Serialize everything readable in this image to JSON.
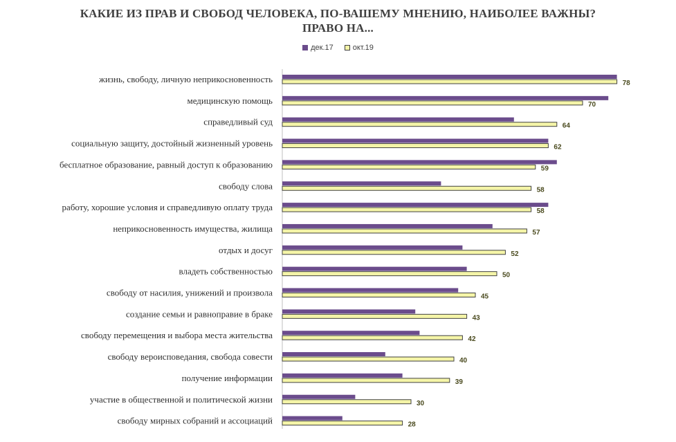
{
  "chart_data": {
    "type": "bar",
    "orientation": "horizontal",
    "title": "КАКИЕ ИЗ ПРАВ И СВОБОД ЧЕЛОВЕКА, ПО-ВАШЕМУ МНЕНИЮ, НАИБОЛЕЕ ВАЖНЫ?",
    "subtitle": "ПРАВО НА...",
    "xlabel": "",
    "ylabel": "",
    "xlim": [
      0,
      82
    ],
    "grid": false,
    "legend_position": "top",
    "categories": [
      "жизнь, свободу, личную неприкосновенность",
      "медицинскую помощь",
      "справедливый суд",
      "социальную защиту, достойный жизненный уровень",
      "бесплатное образование, равный доступ к образованию",
      "свободу слова",
      "работу, хорошие условия и справедливую оплату труда",
      "неприкосновенность имущества, жилища",
      "отдых и досуг",
      "владеть собственностью",
      "свободу от насилия, унижений и произвола",
      "создание семьи и равноправие в браке",
      "свободу перемещения и выбора места жительства",
      "свободу вероисповедания, свобода совести",
      "получение информации",
      "участие в общественной и политической жизни",
      "свободу мирных собраний и ассоциаций"
    ],
    "series": [
      {
        "name": "дек.17",
        "color": "#6b4c8c",
        "values": [
          78,
          76,
          54,
          62,
          64,
          37,
          62,
          49,
          42,
          43,
          41,
          31,
          32,
          24,
          28,
          17,
          14
        ],
        "labeled": false
      },
      {
        "name": "окт.19",
        "color": "#f5f5a8",
        "border_color": "#404040",
        "values": [
          78,
          70,
          64,
          62,
          59,
          58,
          58,
          57,
          52,
          50,
          45,
          43,
          42,
          40,
          39,
          30,
          28
        ],
        "labeled": true
      }
    ]
  }
}
